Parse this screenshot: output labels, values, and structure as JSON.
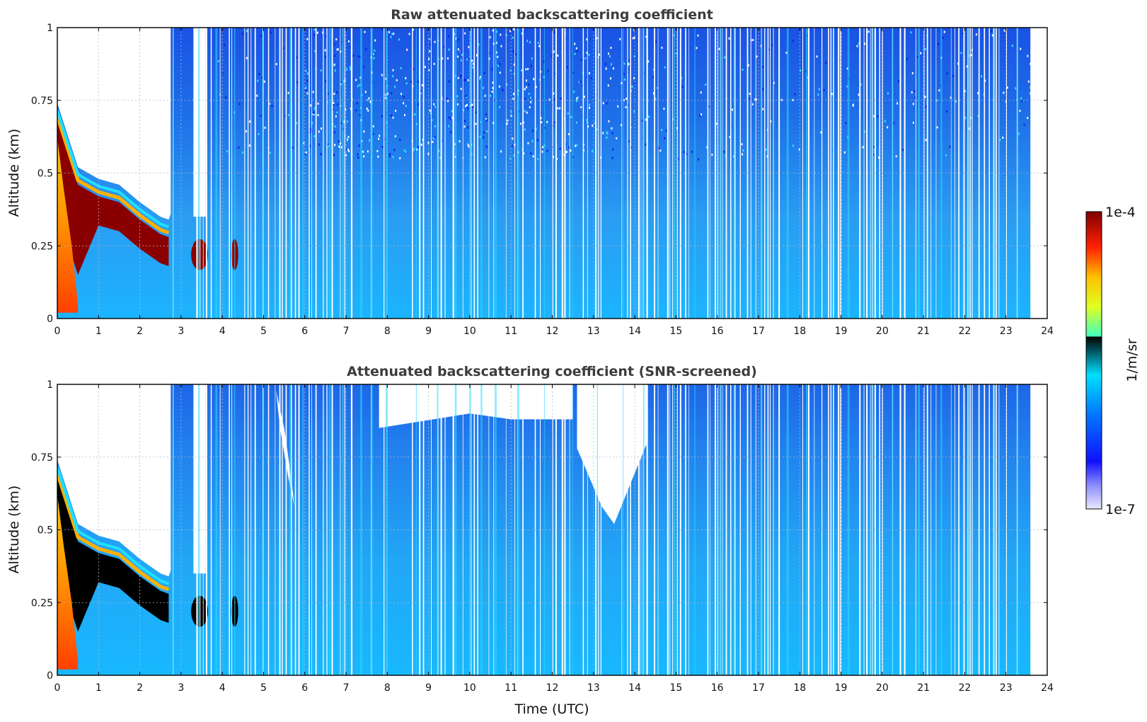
{
  "chart_data": [
    {
      "type": "heatmap",
      "title": "Raw attenuated backscattering coefficient",
      "xlabel": "",
      "ylabel": "Altitude (km)",
      "xlim": [
        0,
        24
      ],
      "ylim": [
        0,
        1
      ],
      "xticks": [
        "0",
        "1",
        "2",
        "3",
        "4",
        "5",
        "6",
        "7",
        "8",
        "9",
        "10",
        "11",
        "12",
        "13",
        "14",
        "15",
        "16",
        "17",
        "18",
        "19",
        "20",
        "21",
        "22",
        "23",
        "24"
      ],
      "yticks": [
        "0",
        "0.25",
        "0.5",
        "0.75",
        "1"
      ],
      "grid": true,
      "data_end_time": 23.6,
      "features": {
        "boundary_layer_top": {
          "time": [
            0.0,
            0.5,
            1.0,
            1.5,
            2.0,
            2.5,
            2.7
          ],
          "altitude": [
            0.72,
            0.5,
            0.46,
            0.44,
            0.38,
            0.33,
            0.32
          ]
        },
        "cloud_patches": [
          {
            "time": 3.45,
            "altitude": 0.22
          },
          {
            "time": 4.3,
            "altitude": 0.22
          }
        ],
        "clear_gap": {
          "time": [
            3.3,
            3.6
          ],
          "altitude": [
            0.35,
            1.0
          ]
        },
        "high_noise_region": {
          "time": [
            6.0,
            14.0
          ],
          "altitude": [
            0.55,
            1.0
          ]
        }
      }
    },
    {
      "type": "heatmap",
      "title": "Attenuated backscattering coefficient (SNR-screened)",
      "xlabel": "Time (UTC)",
      "ylabel": "Altitude (km)",
      "xlim": [
        0,
        24
      ],
      "ylim": [
        0,
        1
      ],
      "xticks": [
        "0",
        "1",
        "2",
        "3",
        "4",
        "5",
        "6",
        "7",
        "8",
        "9",
        "10",
        "11",
        "12",
        "13",
        "14",
        "15",
        "16",
        "17",
        "18",
        "19",
        "20",
        "21",
        "22",
        "23",
        "24"
      ],
      "yticks": [
        "0",
        "0.25",
        "0.5",
        "0.75",
        "1"
      ],
      "grid": true,
      "data_end_time": 23.6,
      "features": {
        "screened_region_top": {
          "time": [
            7.8,
            10.0,
            11.0,
            12.5
          ],
          "altitude": [
            0.85,
            0.9,
            0.88,
            0.88
          ]
        },
        "screened_region_center": {
          "time": [
            12.6,
            13.2,
            13.5,
            14.3
          ],
          "altitude": [
            0.78,
            0.58,
            0.52,
            0.8
          ]
        },
        "saturated_region": {
          "time": [
            0.3,
            2.8
          ],
          "altitude": [
            0.2,
            0.45
          ]
        }
      }
    }
  ],
  "colorbar": {
    "label": "1/m/sr",
    "max_label": "1e-4",
    "min_label": "1e-7",
    "scale": "log",
    "range": [
      1e-07,
      0.0001
    ]
  }
}
